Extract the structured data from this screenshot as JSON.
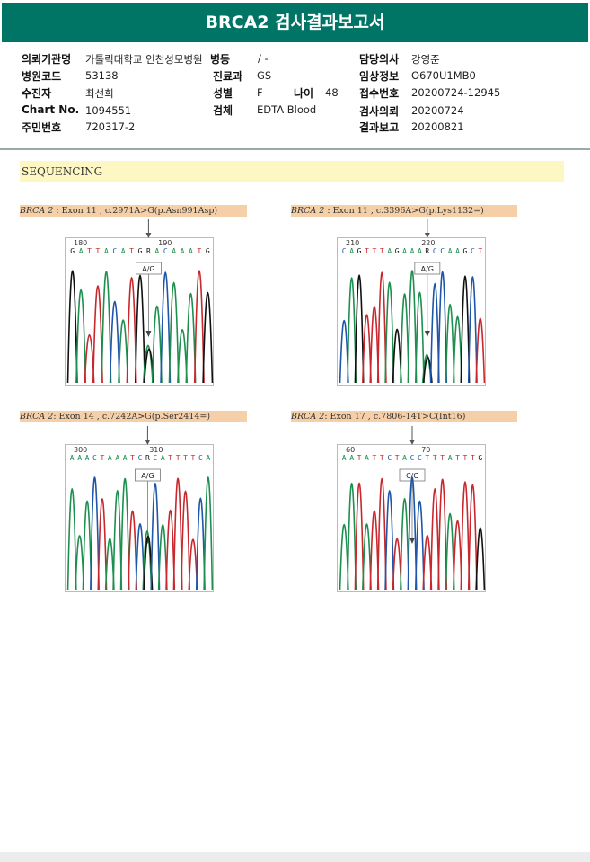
{
  "title": "BRCA2 검사결과보고서",
  "info": {
    "institution_label": "의뢰기관명",
    "institution": "가톨릭대학교 인천성모병원",
    "ward_label": "병동",
    "ward": "/ -",
    "doctor_label": "담당의사",
    "doctor": "강영준",
    "hospital_code_label": "병원코드",
    "hospital_code": "53138",
    "dept_label": "진료과",
    "dept": "GS",
    "clinical_label": "임상정보",
    "clinical": "O670U1MB0",
    "patient_label": "수진자",
    "patient": "최선희",
    "sex_label": "성별",
    "sex": "F",
    "age_label": "나이",
    "age": "48",
    "receipt_label": "접수번호",
    "receipt": "20200724-12945",
    "chart_label": "Chart No.",
    "chart": "1094551",
    "specimen_label": "검체",
    "specimen": "EDTA Blood",
    "request_label": "검사의뢰",
    "request": "20200724",
    "id_label": "주민번호",
    "id": "720317-2",
    "report_label": "결과보고",
    "report": "20200821"
  },
  "section_title": "SEQUENCING",
  "panels": [
    {
      "gene": "BRCA 2",
      "variant": " : Exon 11 , c.2971A>G(p.Asn991Asp)",
      "pos_start": "180",
      "pos_end": "190",
      "sequence": "GATTACATGRACAAATG",
      "call": "A/G"
    },
    {
      "gene": "BRCA 2",
      "variant": " : Exon 11 , c.3396A>G(p.Lys1132=)",
      "pos_start": "210",
      "pos_end": "220",
      "sequence": "CAGTTTAGAAARCCAAGCT",
      "call": "A/G"
    },
    {
      "gene": "BRCA 2",
      "variant": ": Exon 14 , c.7242A>G(p.Ser2414=)",
      "pos_start": "300",
      "pos_end": "310",
      "sequence": "AAACTAAATCRCATTTTCA",
      "call": "A/G"
    },
    {
      "gene": "BRCA 2",
      "variant": ": Exon 17 , c.7806-14T>C(Int16)",
      "pos_start": "60",
      "pos_end": "70",
      "sequence": "AATATTCTACCTTTATTTG",
      "call": "C/C"
    }
  ],
  "colors": {
    "A": "#1e8f4e",
    "C": "#1f56a8",
    "G": "#111111",
    "T": "#c8282d",
    "R": "#111111"
  }
}
